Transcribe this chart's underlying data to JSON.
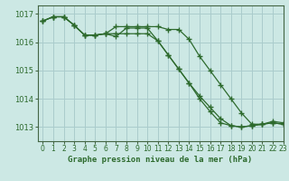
{
  "title": "Graphe pression niveau de la mer (hPa)",
  "bg_color": "#cce8e4",
  "grid_color": "#aacccc",
  "line_color": "#2d6a2d",
  "xlim": [
    -0.5,
    23
  ],
  "ylim": [
    1012.5,
    1017.3
  ],
  "xticks": [
    0,
    1,
    2,
    3,
    4,
    5,
    6,
    7,
    8,
    9,
    10,
    11,
    12,
    13,
    14,
    15,
    16,
    17,
    18,
    19,
    20,
    21,
    22,
    23
  ],
  "yticks": [
    1013,
    1014,
    1015,
    1016,
    1017
  ],
  "series": [
    [
      1016.75,
      1016.9,
      1016.9,
      1016.6,
      1016.25,
      1016.25,
      1016.3,
      1016.55,
      1016.55,
      1016.55,
      1016.55,
      1016.55,
      1016.45,
      1016.45,
      1016.1,
      1015.5,
      1015.0,
      1014.5,
      1014.0,
      1013.5,
      1013.1,
      1013.1,
      1013.2,
      1013.15
    ],
    [
      1016.75,
      1016.9,
      1016.9,
      1016.6,
      1016.25,
      1016.25,
      1016.3,
      1016.3,
      1016.3,
      1016.3,
      1016.3,
      1016.05,
      1015.55,
      1015.05,
      1014.55,
      1014.1,
      1013.7,
      1013.3,
      1013.05,
      1013.0,
      1013.05,
      1013.1,
      1013.15,
      1013.1
    ],
    [
      1016.75,
      1016.9,
      1016.9,
      1016.6,
      1016.25,
      1016.25,
      1016.3,
      1016.2,
      1016.5,
      1016.5,
      1016.5,
      1016.05,
      1015.55,
      1015.05,
      1014.55,
      1014.0,
      1013.55,
      1013.15,
      1013.05,
      1013.0,
      1013.05,
      1013.1,
      1013.15,
      1013.1
    ]
  ]
}
